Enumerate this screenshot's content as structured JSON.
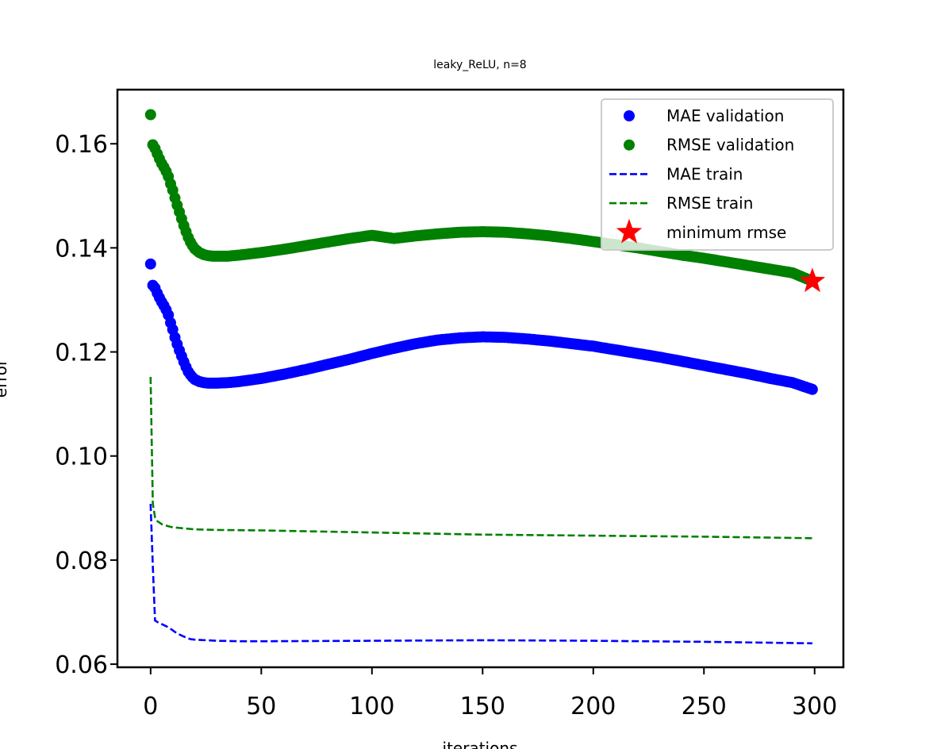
{
  "chart_data": {
    "type": "line",
    "title": "leaky_ReLU, n=8",
    "xlabel": "iterations",
    "ylabel": "error",
    "xlim": [
      -15,
      313
    ],
    "ylim": [
      0.0594,
      0.1704
    ],
    "xticks": [
      0,
      50,
      100,
      150,
      200,
      250,
      300
    ],
    "yticks": [
      0.06,
      0.08,
      0.1,
      0.12,
      0.14,
      0.16
    ],
    "ytick_labels": [
      "0.06",
      "0.08",
      "0.10",
      "0.12",
      "0.14",
      "0.16"
    ],
    "xtick_labels": [
      "0",
      "50",
      "100",
      "150",
      "200",
      "250",
      "300"
    ],
    "grid": false,
    "legend_position": "top-right",
    "series": [
      {
        "name": "MAE validation",
        "style": "markers",
        "color": "#0000ff",
        "x": [
          0,
          1,
          2,
          3,
          4,
          5,
          6,
          7,
          8,
          9,
          10,
          11,
          12,
          13,
          14,
          15,
          16,
          17,
          18,
          19,
          20,
          22,
          24,
          26,
          28,
          30,
          35,
          40,
          50,
          60,
          70,
          80,
          90,
          100,
          110,
          120,
          130,
          140,
          150,
          160,
          170,
          180,
          190,
          200,
          210,
          220,
          230,
          240,
          250,
          260,
          270,
          280,
          290,
          299
        ],
        "y": [
          0.1369,
          0.1328,
          0.1323,
          0.1313,
          0.1304,
          0.1296,
          0.1289,
          0.1281,
          0.1271,
          0.1256,
          0.1243,
          0.1228,
          0.1215,
          0.1203,
          0.1192,
          0.1181,
          0.1171,
          0.1162,
          0.1156,
          0.1151,
          0.1147,
          0.1143,
          0.1141,
          0.114,
          0.114,
          0.114,
          0.1141,
          0.1143,
          0.1149,
          0.1157,
          0.1166,
          0.1176,
          0.1186,
          0.1197,
          0.1207,
          0.1216,
          0.1223,
          0.1227,
          0.1229,
          0.1228,
          0.1225,
          0.1221,
          0.1216,
          0.1211,
          0.1204,
          0.1197,
          0.119,
          0.1182,
          0.1174,
          0.1166,
          0.1158,
          0.1149,
          0.1141,
          0.1128
        ]
      },
      {
        "name": "RMSE validation",
        "style": "markers",
        "color": "#008000",
        "x": [
          0,
          1,
          2,
          3,
          4,
          5,
          6,
          7,
          8,
          9,
          10,
          11,
          12,
          13,
          14,
          15,
          16,
          17,
          18,
          19,
          20,
          22,
          24,
          26,
          28,
          30,
          35,
          40,
          50,
          60,
          70,
          80,
          90,
          100,
          110,
          120,
          130,
          140,
          150,
          160,
          170,
          180,
          190,
          200,
          210,
          220,
          230,
          240,
          250,
          260,
          270,
          280,
          290,
          299
        ],
        "y": [
          0.1656,
          0.1598,
          0.1591,
          0.1581,
          0.1571,
          0.1562,
          0.1555,
          0.1547,
          0.1537,
          0.1523,
          0.1511,
          0.1496,
          0.1482,
          0.1469,
          0.1456,
          0.1443,
          0.1431,
          0.142,
          0.1411,
          0.1404,
          0.1398,
          0.1391,
          0.1387,
          0.1385,
          0.1384,
          0.1384,
          0.1384,
          0.1386,
          0.1391,
          0.1397,
          0.1404,
          0.1411,
          0.1418,
          0.1424,
          0.1418,
          0.1423,
          0.1427,
          0.143,
          0.1431,
          0.143,
          0.1427,
          0.1423,
          0.1418,
          0.1412,
          0.1406,
          0.14,
          0.1393,
          0.1386,
          0.138,
          0.1373,
          0.1366,
          0.1359,
          0.1352,
          0.1336
        ]
      },
      {
        "name": "MAE train",
        "style": "dashed",
        "color": "#0000ff",
        "x": [
          0,
          1,
          2,
          3,
          5,
          8,
          10,
          12,
          15,
          18,
          20,
          25,
          30,
          40,
          50,
          100,
          150,
          200,
          250,
          299
        ],
        "y": [
          0.0908,
          0.0789,
          0.0684,
          0.0681,
          0.0677,
          0.0671,
          0.0665,
          0.0659,
          0.0653,
          0.0648,
          0.0647,
          0.0646,
          0.0645,
          0.0644,
          0.0644,
          0.0645,
          0.0646,
          0.0645,
          0.0643,
          0.064
        ]
      },
      {
        "name": "RMSE train",
        "style": "dashed",
        "color": "#008000",
        "x": [
          0,
          1,
          2,
          3,
          5,
          8,
          10,
          15,
          20,
          30,
          50,
          100,
          150,
          200,
          250,
          299
        ],
        "y": [
          0.1152,
          0.0909,
          0.0882,
          0.0875,
          0.0869,
          0.0865,
          0.0863,
          0.0861,
          0.0859,
          0.0858,
          0.0857,
          0.0853,
          0.0849,
          0.0847,
          0.0845,
          0.0842
        ]
      },
      {
        "name": "minimum rmse",
        "style": "star",
        "color": "#ff0000",
        "x": [
          299
        ],
        "y": [
          0.1336
        ]
      }
    ]
  }
}
